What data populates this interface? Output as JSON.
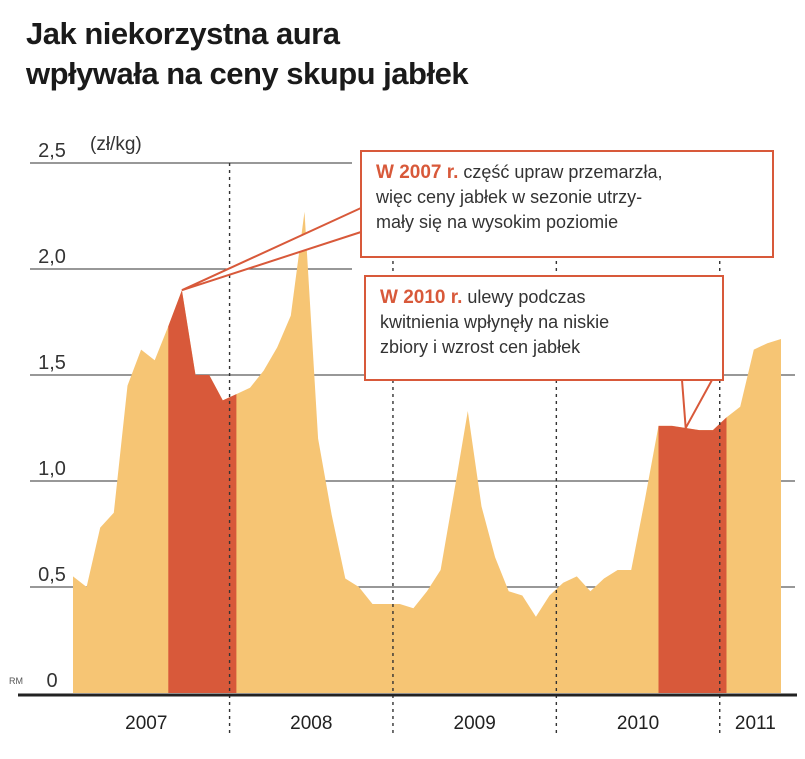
{
  "title": {
    "line1": "Jak niekorzystna aura",
    "line2": "wpływała na ceny skupu jabłek"
  },
  "source_label": "RM",
  "callouts": {
    "c2007": {
      "lead": "W 2007 r.",
      "line1_rest": " część upraw przemarzła,",
      "line2": "więc ceny jabłek w sezonie utrzy-",
      "line3": "mały się na wysokim poziomie"
    },
    "c2010": {
      "lead": "W 2010 r.",
      "line1_rest": " ulewy podczas",
      "line2": "kwitnienia wpłynęły na niskie",
      "line3": "zbiory i wzrost cen jabłek"
    }
  },
  "colors": {
    "area": "#f6c574",
    "highlight": "#d8593a",
    "grid": "#5a5a5a",
    "axis": "#222222"
  },
  "chart_data": {
    "type": "area",
    "title": "Jak niekorzystna aura wpływała na ceny skupu jabłek",
    "ylabel": "(zł/kg)",
    "xlabel": "",
    "ylim": [
      0,
      2.5
    ],
    "y_ticks": [
      "0",
      "0,5",
      "1,0",
      "1,5",
      "2,0",
      "2,5"
    ],
    "y_tick_values": [
      0,
      0.5,
      1.0,
      1.5,
      2.0,
      2.5
    ],
    "x_labels": [
      "2007",
      "2008",
      "2009",
      "2010",
      "2011"
    ],
    "x_label_months": [
      3,
      16,
      28,
      40,
      51
    ],
    "year_separator_months": [
      11.5,
      23.5,
      35.5,
      47.5
    ],
    "month_count": 53,
    "highlight_ranges": [
      [
        7,
        12
      ],
      [
        43,
        48
      ]
    ],
    "callout_targets": [
      8,
      45
    ],
    "grid": true,
    "series": [
      {
        "name": "Cena skupu jabłek",
        "unit": "zł/kg",
        "values": [
          0.55,
          0.5,
          0.78,
          0.85,
          1.45,
          1.62,
          1.57,
          1.73,
          1.9,
          1.5,
          1.5,
          1.38,
          1.41,
          1.44,
          1.52,
          1.63,
          1.78,
          2.27,
          1.2,
          0.84,
          0.54,
          0.5,
          0.42,
          0.42,
          0.42,
          0.4,
          0.48,
          0.58,
          0.95,
          1.33,
          0.88,
          0.64,
          0.48,
          0.46,
          0.36,
          0.46,
          0.52,
          0.55,
          0.48,
          0.54,
          0.58,
          0.58,
          0.91,
          1.26,
          1.26,
          1.25,
          1.24,
          1.24,
          1.3,
          1.35,
          1.62,
          1.65,
          1.67
        ]
      }
    ]
  }
}
